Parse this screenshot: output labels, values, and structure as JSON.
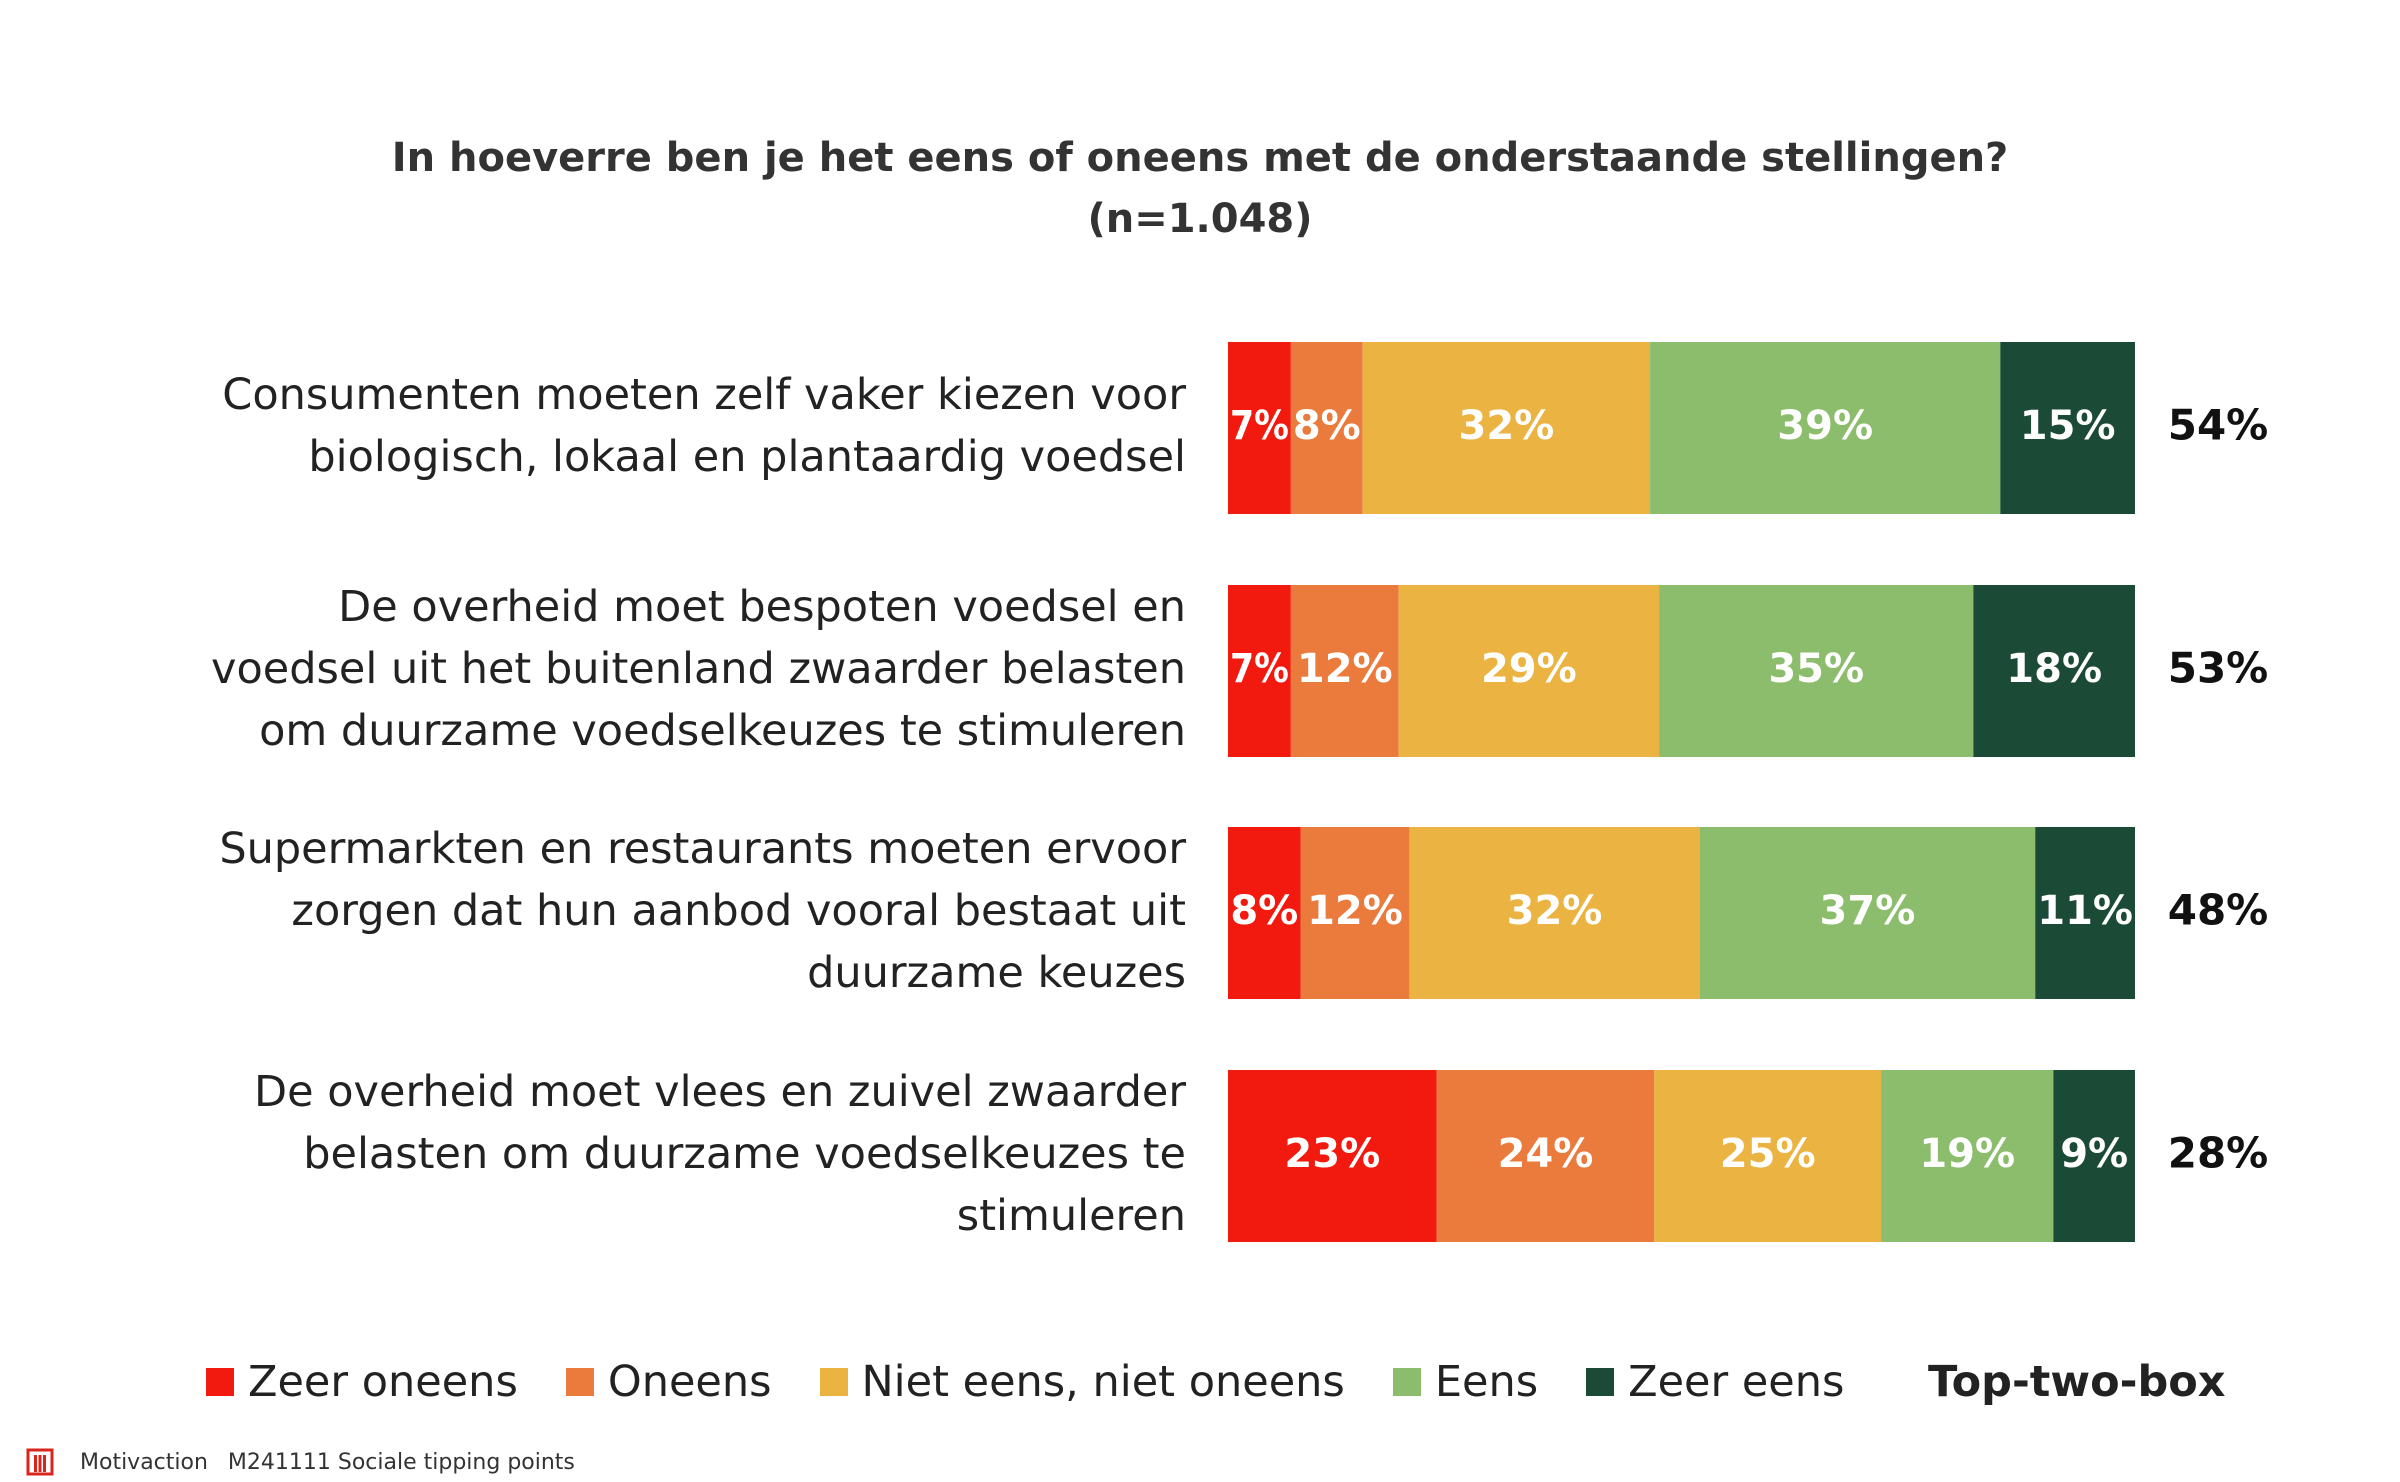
{
  "chart_data": {
    "type": "bar",
    "orientation": "horizontal",
    "stacked": true,
    "title": "In hoeverre ben je het eens of oneens met de onderstaande stellingen?",
    "subtitle": "(n=1.048)",
    "categories": [
      "Consumenten moeten zelf vaker kiezen voor biologisch, lokaal en plantaardig voedsel",
      "De overheid moet bespoten voedsel en voedsel uit het buitenland zwaarder belasten om duurzame voedselkeuzes te stimuleren",
      "Supermarkten en restaurants moeten ervoor zorgen dat hun aanbod vooral bestaat uit duurzame keuzes",
      "De overheid moet vlees en zuivel zwaarder belasten om duurzame voedselkeuzes te stimuleren"
    ],
    "category_lines": [
      [
        "Consumenten moeten zelf vaker kiezen voor",
        "biologisch, lokaal en plantaardig voedsel"
      ],
      [
        "De overheid moet bespoten voedsel en",
        "voedsel uit het buitenland zwaarder belasten",
        "om duurzame voedselkeuzes te stimuleren"
      ],
      [
        "Supermarkten en restaurants moeten ervoor",
        "zorgen dat hun aanbod vooral bestaat uit",
        "duurzame keuzes"
      ],
      [
        "De overheid moet vlees en zuivel zwaarder",
        "belasten om duurzame voedselkeuzes te",
        "stimuleren"
      ]
    ],
    "series": [
      {
        "name": "Zeer oneens",
        "color": "#f21a0f",
        "values": [
          7,
          7,
          8,
          23
        ]
      },
      {
        "name": "Oneens",
        "color": "#ea7b3c",
        "values": [
          8,
          12,
          12,
          24
        ]
      },
      {
        "name": "Niet eens, niet oneens",
        "color": "#ebb442",
        "values": [
          32,
          29,
          32,
          25
        ]
      },
      {
        "name": "Eens",
        "color": "#8cbd6c",
        "values": [
          39,
          35,
          37,
          19
        ]
      },
      {
        "name": "Zeer eens",
        "color": "#1b4a36",
        "values": [
          15,
          18,
          11,
          9
        ]
      }
    ],
    "value_suffix": "%",
    "top_two_box": {
      "label": "Top-two-box",
      "values": [
        "54%",
        "53%",
        "48%",
        "28%"
      ]
    },
    "legend_position": "bottom",
    "grid": false
  },
  "footer": {
    "company": "Motivaction",
    "project": "M241111 Sociale tipping points",
    "logo_icon": "motivaction-logo-icon"
  }
}
